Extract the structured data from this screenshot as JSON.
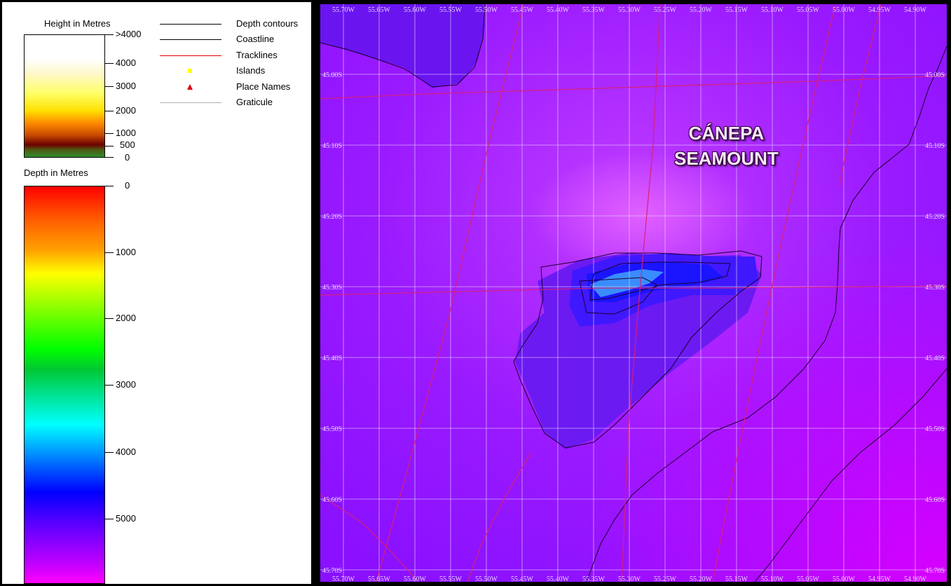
{
  "legend": {
    "height_title": "Height in Metres",
    "height_ticks": [
      ">4000",
      "4000",
      "3000",
      "2000",
      "1000",
      "500",
      "0"
    ],
    "depth_title": "Depth in Metres",
    "depth_ticks": [
      "0",
      "1000",
      "2000",
      "3000",
      "4000",
      "5000"
    ],
    "items": [
      {
        "label": "Depth contours",
        "symbol": "line",
        "color": "#000000"
      },
      {
        "label": "Coastline",
        "symbol": "line",
        "color": "#000000"
      },
      {
        "label": "Tracklines",
        "symbol": "line",
        "color": "#e00000"
      },
      {
        "label": "Islands",
        "symbol": "square",
        "color": "#ffff00"
      },
      {
        "label": "Place Names",
        "symbol": "triangle",
        "color": "#e00000"
      },
      {
        "label": "Graticule",
        "symbol": "line",
        "color": "#b0b0b0"
      }
    ]
  },
  "map": {
    "place_label_line1": "CÁNEPA",
    "place_label_line2": "SEAMOUNT",
    "longitudes": [
      "55.70W",
      "55.65W",
      "55.60W",
      "55.55W",
      "55.50W",
      "55.45W",
      "55.40W",
      "55.35W",
      "55.30W",
      "55.25W",
      "55.20W",
      "55.15W",
      "55.10W",
      "55.05W",
      "55.00W",
      "54.95W",
      "54.90W"
    ],
    "latitudes": [
      "45.00S",
      "45.10S",
      "45.20S",
      "45.30S",
      "45.40S",
      "45.50S",
      "45.60S",
      "45.70S"
    ],
    "colors": {
      "background": "#8a10ff",
      "graticule": "#e8d8ff",
      "track": "#d8207a",
      "contour": "#1a0030"
    }
  }
}
